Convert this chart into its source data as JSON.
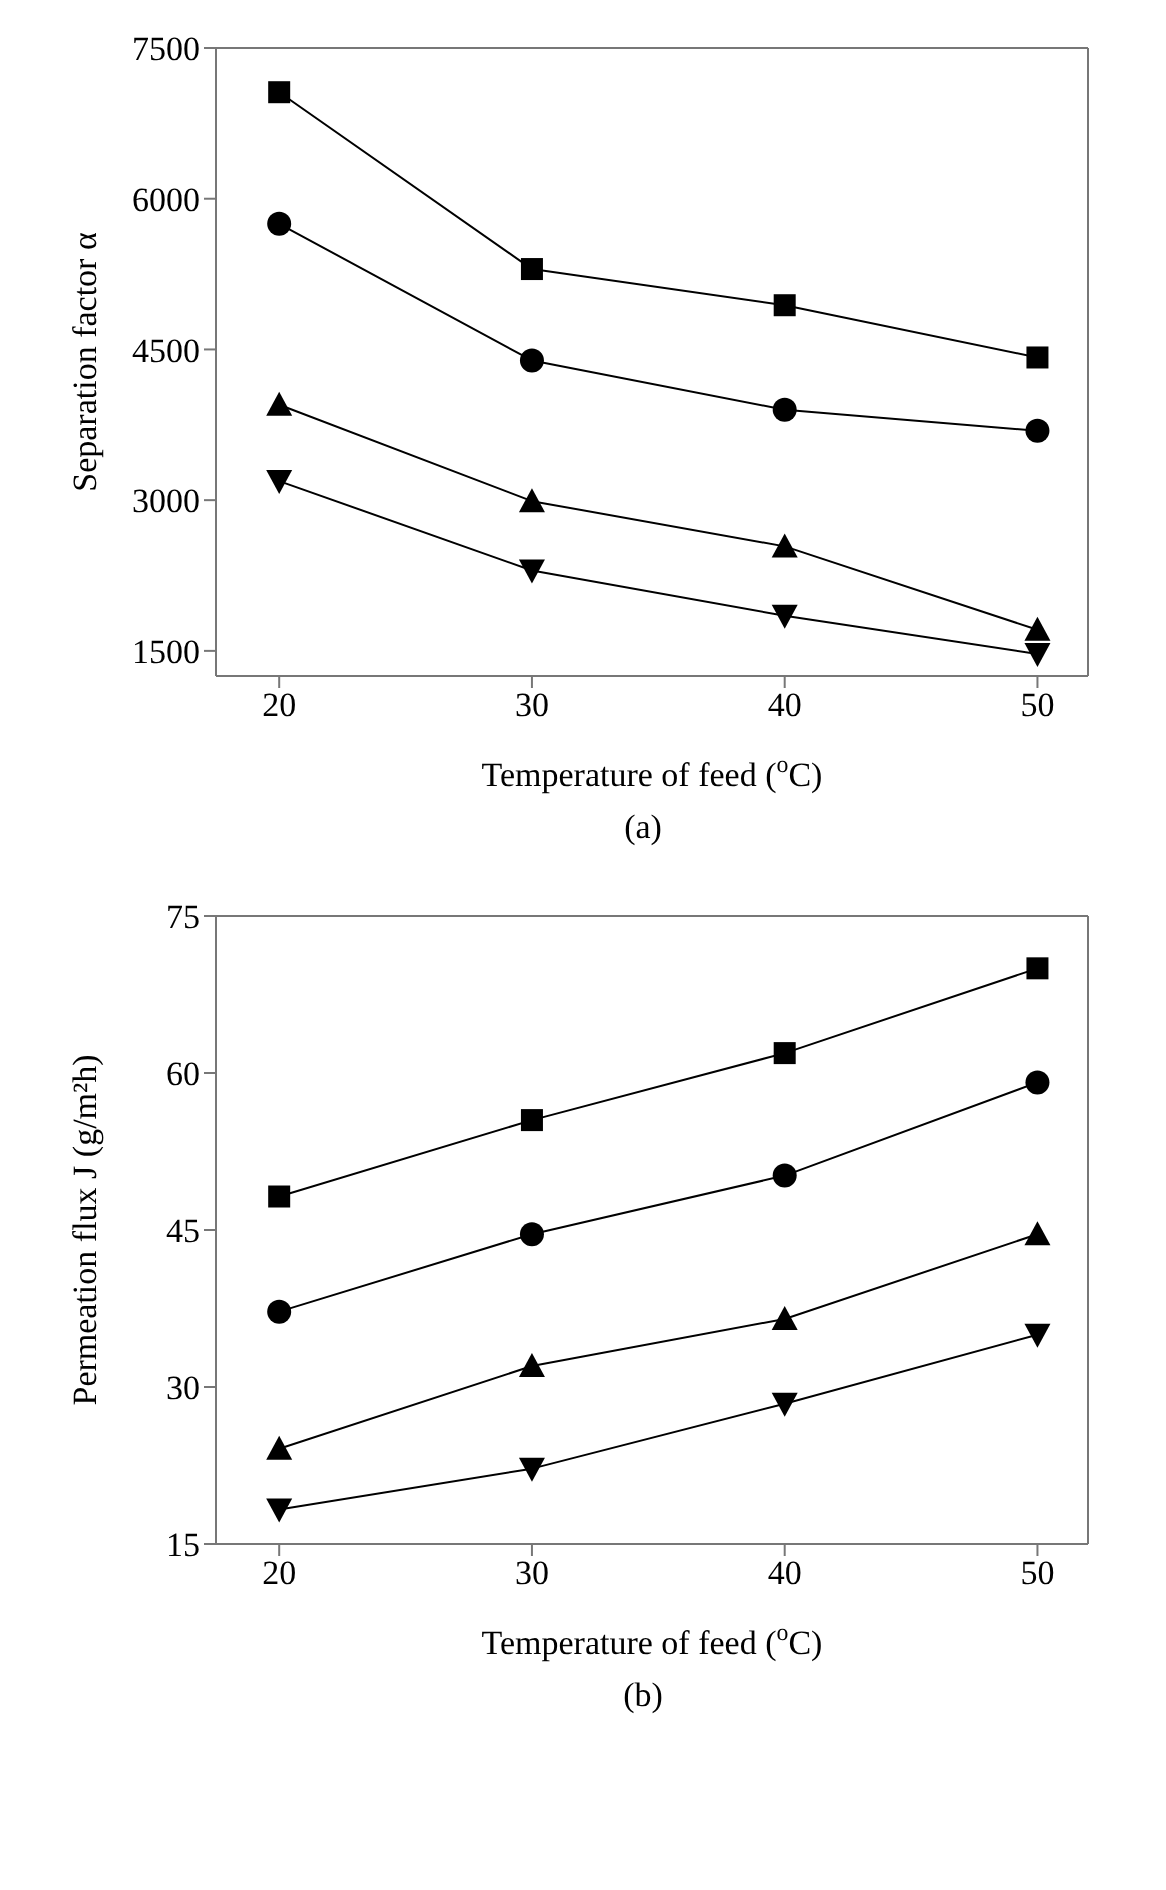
{
  "chart_data": [
    {
      "type": "line",
      "annotations": [
        "(a)"
      ],
      "xlabel": "Temperature of feed  ($^{o}$C)",
      "ylabel": "Separation factor α",
      "x": [
        20,
        30,
        40,
        50
      ],
      "xlim": [
        17.5,
        52
      ],
      "xticks": [
        20,
        30,
        40,
        50
      ],
      "ylim": [
        1250,
        7500
      ],
      "yticks": [
        1500,
        3000,
        4500,
        6000,
        7500
      ],
      "grid": false,
      "legend": false,
      "line_style": "solid",
      "series": [
        {
          "color": "#000000",
          "marker": "square",
          "values": [
            7060,
            5300,
            4940,
            4420
          ]
        },
        {
          "color": "#000000",
          "marker": "circle",
          "values": [
            5750,
            4390,
            3900,
            3690
          ]
        },
        {
          "color": "#000000",
          "marker": "triangle",
          "values": [
            3950,
            2990,
            2540,
            1710
          ]
        },
        {
          "color": "#000000",
          "marker": "triangle-down",
          "values": [
            3190,
            2300,
            1850,
            1470
          ]
        }
      ]
    },
    {
      "type": "line",
      "annotations": [
        "(b)"
      ],
      "xlabel": "Temperature of feed  ($^{o}$C)",
      "ylabel": "Permeation flux J (g/m²h)",
      "x": [
        20,
        30,
        40,
        50
      ],
      "xlim": [
        17.5,
        52
      ],
      "xticks": [
        20,
        30,
        40,
        50
      ],
      "ylim": [
        15,
        75
      ],
      "yticks": [
        15,
        30,
        45,
        60,
        75
      ],
      "grid": false,
      "legend": false,
      "line_style": "solid",
      "series": [
        {
          "color": "#000000",
          "marker": "square",
          "values": [
            48.2,
            55.5,
            61.9,
            70.0
          ]
        },
        {
          "color": "#000000",
          "marker": "circle",
          "values": [
            37.2,
            44.6,
            50.2,
            59.1
          ]
        },
        {
          "color": "#000000",
          "marker": "triangle",
          "values": [
            24.1,
            32.0,
            36.5,
            44.6
          ]
        },
        {
          "color": "#000000",
          "marker": "triangle-down",
          "values": [
            18.3,
            22.2,
            28.4,
            35.0
          ]
        }
      ]
    }
  ]
}
